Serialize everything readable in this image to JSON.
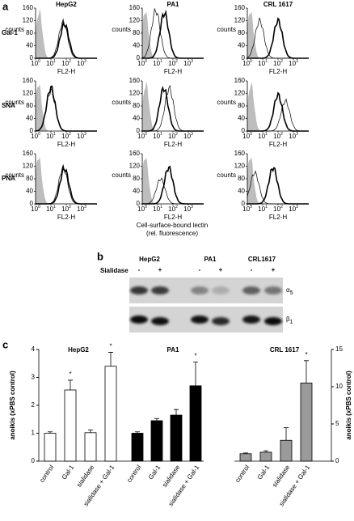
{
  "panel_a": {
    "label": "a",
    "cell_lines": [
      "HepG2",
      "PA1",
      "CRL 1617"
    ],
    "lectins": [
      "Gal-1",
      "SNA",
      "PNA"
    ],
    "y_label": "counts",
    "x_label": "FL2-H",
    "ylim": [
      0,
      160
    ],
    "y_ticks": [
      0,
      40,
      80,
      120,
      160
    ],
    "xlim": [
      1,
      10000
    ],
    "x_ticks": [
      {
        "value": 1,
        "base": "10",
        "exponent": "0"
      },
      {
        "value": 10,
        "base": "10",
        "exponent": "1"
      },
      {
        "value": 100,
        "base": "10",
        "exponent": "2"
      },
      {
        "value": 1000,
        "base": "10",
        "exponent": "3"
      }
    ],
    "caption": [
      "Cell-surface-bound lectin",
      "(rel. fluorescence)"
    ]
  },
  "panel_b": {
    "label": "b",
    "cell_lines": [
      "HepG2",
      "PA1",
      "CRL1617"
    ],
    "treatment": "Sialidase",
    "lanes": [
      "-",
      "+",
      "-",
      "+",
      "-",
      "+"
    ],
    "proteins": [
      {
        "symbol": "α",
        "subscript": "5"
      },
      {
        "symbol": "β",
        "subscript": "1"
      }
    ]
  },
  "panel_c": {
    "label": "c",
    "y_label": "anoikis (xPBS control)",
    "y2_label": "anoikis (xPBS control)",
    "ylim": [
      0,
      4
    ],
    "yticks": [
      0,
      1,
      2,
      3,
      4
    ],
    "y2lim": [
      0,
      15
    ],
    "y2ticks": [
      0,
      5,
      10,
      15
    ],
    "groups": [
      {
        "name": "HepG2",
        "axis": "y",
        "color": "#ffffff",
        "categories": [
          "control",
          "Gal-1",
          "sialidase",
          "sialidase + Gal-1"
        ],
        "values": [
          1.0,
          2.55,
          1.02,
          3.4
        ],
        "errors": [
          0.05,
          0.35,
          0.1,
          0.5
        ],
        "annotations": [
          null,
          "*",
          null,
          "*"
        ]
      },
      {
        "name": "PA1",
        "axis": "y",
        "color": "#000000",
        "categories": [
          "control",
          "Gal-1",
          "sialidase",
          "sialidase + Gal-1"
        ],
        "values": [
          1.0,
          1.45,
          1.65,
          2.7
        ],
        "errors": [
          0.05,
          0.08,
          0.2,
          0.85
        ],
        "annotations": [
          null,
          null,
          null,
          "*"
        ]
      },
      {
        "name": "CRL 1617",
        "axis": "y2",
        "color": "#9a9a9a",
        "categories": [
          "control",
          "Gal-1",
          "sialidase",
          "sialidase + Gal-1"
        ],
        "values": [
          1.0,
          1.2,
          2.8,
          10.5
        ],
        "errors": [
          0.1,
          0.2,
          1.7,
          3.0
        ],
        "annotations": [
          null,
          null,
          null,
          "*"
        ]
      }
    ]
  }
}
